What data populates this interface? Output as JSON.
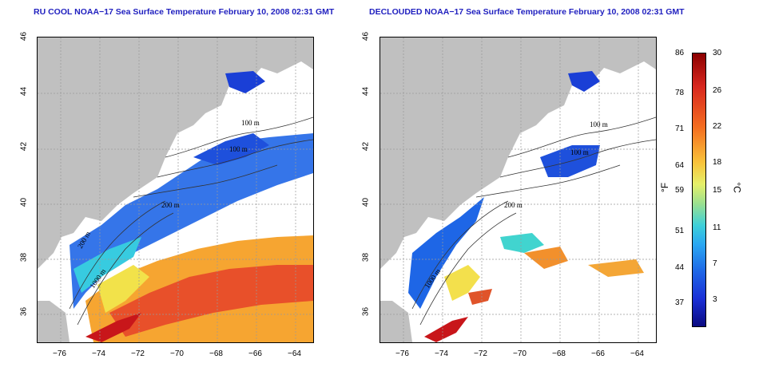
{
  "left_panel": {
    "title": "RU COOL NOAA−17 Sea Surface Temperature February 10, 2008 02:31 GMT",
    "contour_labels": [
      "100 m",
      "100 m",
      "200 m",
      "200 m",
      "1000 m"
    ]
  },
  "right_panel": {
    "title": "DECLOUDED NOAA−17 Sea Surface Temperature February 10, 2008 02:31 GMT",
    "contour_labels": [
      "100 m",
      "100 m",
      "200 m",
      "1000 m"
    ]
  },
  "x_ticks": [
    "−76",
    "−74",
    "−72",
    "−70",
    "−68",
    "−66",
    "−64"
  ],
  "y_ticks": [
    "36",
    "38",
    "40",
    "42",
    "44",
    "46"
  ],
  "colorbar": {
    "fahrenheit_ticks": [
      "86",
      "78",
      "71",
      "64",
      "59",
      "51",
      "44",
      "37"
    ],
    "celsius_ticks": [
      "30",
      "26",
      "22",
      "18",
      "15",
      "11",
      "7",
      "3"
    ],
    "fahrenheit_unit": "°F",
    "celsius_unit": "°C"
  },
  "colors": {
    "title": "#1f1fbf",
    "land": "#c0c0c0",
    "grid": "#999999"
  }
}
